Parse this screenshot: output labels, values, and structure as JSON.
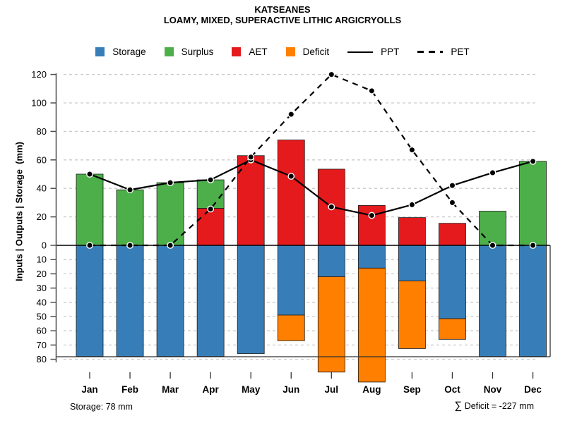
{
  "header": {
    "title": "KATSEANES",
    "subtitle": "LOAMY, MIXED, SUPERACTIVE LITHIC ARGICRYOLLS"
  },
  "y_axis_label": "Inputs | Outputs | Storage  (mm)",
  "footer": {
    "storage_note": "Storage: 78 mm",
    "deficit_sigma": "∑",
    "deficit_note": " Deficit = -227 mm"
  },
  "legend": [
    {
      "label": "Storage",
      "swatch": "square",
      "color": "#377EB8"
    },
    {
      "label": "Surplus",
      "swatch": "square",
      "color": "#4DAF4A"
    },
    {
      "label": "AET",
      "swatch": "square",
      "color": "#E41A1C"
    },
    {
      "label": "Deficit",
      "swatch": "square",
      "color": "#FF7F00"
    },
    {
      "label": "PPT",
      "swatch": "solid-line",
      "color": "#000000"
    },
    {
      "label": "PET",
      "swatch": "dashed-line",
      "color": "#000000"
    }
  ],
  "colors": {
    "storage": "#377EB8",
    "surplus": "#4DAF4A",
    "aet": "#E41A1C",
    "deficit": "#FF7F00",
    "line": "#000000",
    "grid": "#C9C9C9",
    "axis": "#4d4d4d",
    "frame": "#333333",
    "bar_border": "#1a1a1a"
  },
  "chart_data": {
    "type": "bar",
    "subtype": "monthly water balance (stacked bars above/below zero + lines)",
    "categories": [
      "Jan",
      "Feb",
      "Mar",
      "Apr",
      "May",
      "Jun",
      "Jul",
      "Aug",
      "Sep",
      "Oct",
      "Nov",
      "Dec"
    ],
    "series": [
      {
        "name": "Surplus",
        "render": "bar-above-zero",
        "stacked_on": "AET",
        "values": [
          50,
          39,
          44,
          20,
          0,
          0,
          0,
          0,
          0,
          0,
          24,
          59
        ]
      },
      {
        "name": "AET",
        "render": "bar-above-zero",
        "values": [
          0,
          0,
          0,
          26,
          63,
          74,
          53.5,
          28,
          19.5,
          15.5,
          0,
          0
        ]
      },
      {
        "name": "Storage",
        "render": "bar-below-zero",
        "values": [
          78,
          78,
          78,
          78,
          76,
          49,
          22,
          16,
          25,
          51.5,
          78,
          78
        ]
      },
      {
        "name": "Deficit",
        "render": "bar-below-zero",
        "stacked_on": "Storage",
        "values": [
          0,
          0,
          0,
          0,
          0,
          -18,
          -67,
          -80,
          -47.5,
          -14.5,
          0,
          0
        ]
      },
      {
        "name": "PPT",
        "render": "line-solid",
        "values": [
          50,
          39,
          44,
          46,
          60,
          48.5,
          27,
          21,
          28.5,
          42,
          51,
          59
        ]
      },
      {
        "name": "PET",
        "render": "line-dashed",
        "values": [
          0,
          0,
          0,
          25.5,
          62,
          92,
          120,
          108.5,
          67,
          30,
          0,
          0
        ]
      }
    ],
    "upper_axis_ticks": [
      0,
      20,
      40,
      60,
      80,
      100,
      120
    ],
    "lower_axis_ticks": [
      10,
      20,
      30,
      40,
      50,
      60,
      70,
      80
    ],
    "upper_ylim": [
      0,
      120
    ],
    "lower_ylim": [
      0,
      80
    ],
    "grid": true,
    "legend_position": "top",
    "deficit_total_mm": -227,
    "final_storage_mm": 78
  }
}
